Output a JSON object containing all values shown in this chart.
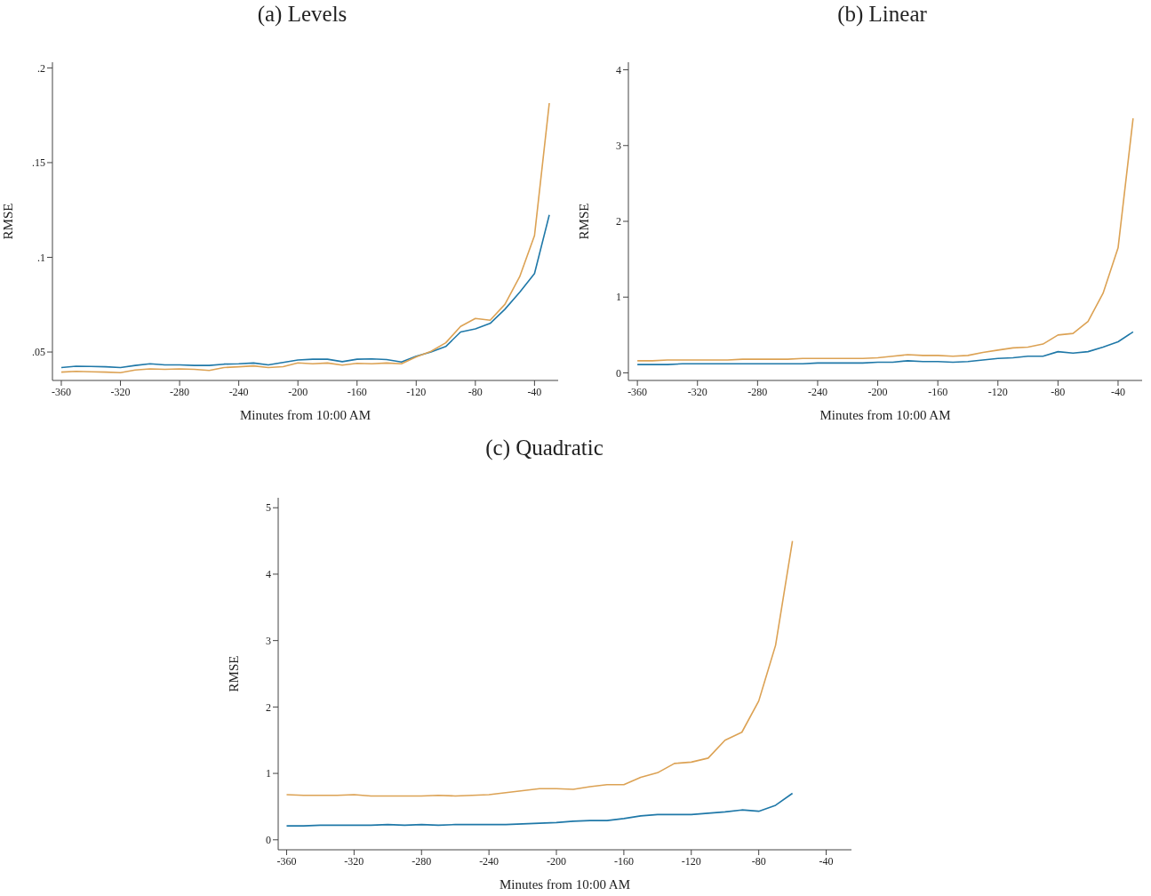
{
  "chart_data": [
    {
      "type": "line",
      "title": "(a) Levels",
      "xlabel": "Minutes from 10:00 AM",
      "ylabel": "RMSE",
      "x": [
        -360,
        -350,
        -340,
        -330,
        -320,
        -310,
        -300,
        -290,
        -280,
        -270,
        -260,
        -250,
        -240,
        -230,
        -220,
        -210,
        -200,
        -190,
        -180,
        -170,
        -160,
        -150,
        -140,
        -130,
        -120,
        -110,
        -100,
        -90,
        -80,
        -70,
        -60,
        -50,
        -40,
        -30
      ],
      "series": [
        {
          "color": "#1f78a8",
          "values": [
            0.0418,
            0.0425,
            0.0424,
            0.0422,
            0.0418,
            0.0429,
            0.0438,
            0.0432,
            0.0432,
            0.0429,
            0.0429,
            0.0436,
            0.0438,
            0.0442,
            0.0432,
            0.0445,
            0.0458,
            0.0462,
            0.0462,
            0.0449,
            0.0462,
            0.0464,
            0.046,
            0.0447,
            0.0478,
            0.05,
            0.0529,
            0.0606,
            0.0622,
            0.0651,
            0.0726,
            0.0816,
            0.0914,
            0.1224
          ]
        },
        {
          "color": "#dca254",
          "values": [
            0.0394,
            0.0398,
            0.0396,
            0.0394,
            0.0391,
            0.0405,
            0.0411,
            0.0409,
            0.0411,
            0.0409,
            0.0403,
            0.0418,
            0.0422,
            0.0427,
            0.0418,
            0.0423,
            0.0443,
            0.0438,
            0.0442,
            0.0431,
            0.044,
            0.0438,
            0.0442,
            0.0438,
            0.0474,
            0.0504,
            0.0549,
            0.0635,
            0.0677,
            0.0668,
            0.0752,
            0.0898,
            0.1115,
            0.1814
          ]
        }
      ],
      "xlim": [
        -366,
        -24
      ],
      "ylim": [
        0.035,
        0.203
      ],
      "xticks": [
        -360,
        -320,
        -280,
        -240,
        -200,
        -160,
        -120,
        -80,
        -40
      ],
      "yticks": [
        {
          "value": 0.05,
          "label": ".05"
        },
        {
          "value": 0.1,
          "label": ".1"
        },
        {
          "value": 0.15,
          "label": ".15"
        },
        {
          "value": 0.2,
          "label": ".2"
        }
      ]
    },
    {
      "type": "line",
      "title": "(b) Linear",
      "xlabel": "Minutes from 10:00 AM",
      "ylabel": "RMSE",
      "x": [
        -360,
        -350,
        -340,
        -330,
        -320,
        -310,
        -300,
        -290,
        -280,
        -270,
        -260,
        -250,
        -240,
        -230,
        -220,
        -210,
        -200,
        -190,
        -180,
        -170,
        -160,
        -150,
        -140,
        -130,
        -120,
        -110,
        -100,
        -90,
        -80,
        -70,
        -60,
        -50,
        -40,
        -30
      ],
      "series": [
        {
          "color": "#1f78a8",
          "values": [
            0.11,
            0.11,
            0.11,
            0.12,
            0.12,
            0.12,
            0.12,
            0.12,
            0.12,
            0.12,
            0.12,
            0.12,
            0.13,
            0.13,
            0.13,
            0.13,
            0.14,
            0.14,
            0.16,
            0.15,
            0.15,
            0.14,
            0.15,
            0.17,
            0.19,
            0.2,
            0.22,
            0.22,
            0.28,
            0.26,
            0.28,
            0.34,
            0.41,
            0.54
          ]
        },
        {
          "color": "#dca254",
          "values": [
            0.16,
            0.16,
            0.17,
            0.17,
            0.17,
            0.17,
            0.17,
            0.18,
            0.18,
            0.18,
            0.18,
            0.19,
            0.19,
            0.19,
            0.19,
            0.19,
            0.2,
            0.22,
            0.24,
            0.23,
            0.23,
            0.22,
            0.23,
            0.27,
            0.3,
            0.33,
            0.34,
            0.38,
            0.5,
            0.52,
            0.68,
            1.05,
            1.65,
            3.36
          ]
        }
      ],
      "xlim": [
        -366,
        -24
      ],
      "ylim": [
        -0.1,
        4.1
      ],
      "xticks": [
        -360,
        -320,
        -280,
        -240,
        -200,
        -160,
        -120,
        -80,
        -40
      ],
      "yticks": [
        0,
        1,
        2,
        3,
        4
      ]
    },
    {
      "type": "line",
      "title": "(c) Quadratic",
      "xlabel": "Minutes from 10:00 AM",
      "ylabel": "RMSE",
      "x": [
        -360,
        -350,
        -340,
        -330,
        -320,
        -310,
        -300,
        -290,
        -280,
        -270,
        -260,
        -250,
        -240,
        -230,
        -220,
        -210,
        -200,
        -190,
        -180,
        -170,
        -160,
        -150,
        -140,
        -130,
        -120,
        -110,
        -100,
        -90,
        -80,
        -70,
        -60
      ],
      "series": [
        {
          "color": "#1f78a8",
          "values": [
            0.21,
            0.21,
            0.22,
            0.22,
            0.22,
            0.22,
            0.23,
            0.22,
            0.23,
            0.22,
            0.23,
            0.23,
            0.23,
            0.23,
            0.24,
            0.25,
            0.26,
            0.28,
            0.29,
            0.29,
            0.32,
            0.36,
            0.38,
            0.38,
            0.38,
            0.4,
            0.42,
            0.45,
            0.43,
            0.52,
            0.7
          ]
        },
        {
          "color": "#dca254",
          "values": [
            0.68,
            0.67,
            0.67,
            0.67,
            0.68,
            0.66,
            0.66,
            0.66,
            0.66,
            0.67,
            0.66,
            0.67,
            0.68,
            0.71,
            0.74,
            0.77,
            0.77,
            0.76,
            0.8,
            0.83,
            0.83,
            0.94,
            1.01,
            1.15,
            1.17,
            1.23,
            1.5,
            1.62,
            2.09,
            2.93,
            4.5
          ]
        }
      ],
      "xlim": [
        -365,
        -25
      ],
      "ylim": [
        -0.15,
        5.15
      ],
      "xticks": [
        -360,
        -320,
        -280,
        -240,
        -200,
        -160,
        -120,
        -80,
        -40
      ],
      "yticks": [
        0,
        1,
        2,
        3,
        4,
        5
      ]
    }
  ]
}
